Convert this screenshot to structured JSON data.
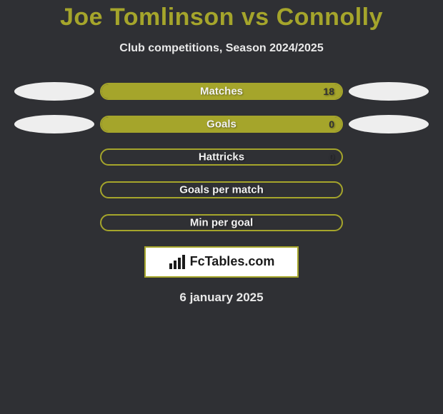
{
  "colors": {
    "background": "#2f3034",
    "title": "#a5a52b",
    "text_light": "#e9e9e9",
    "text_dark": "#1a1a1a",
    "track_border": "#a5a52b",
    "track_fill": "#a5a52b",
    "ellipse": "#eeeeee",
    "brand_border": "#a5a52b",
    "brand_bg": "#ffffff",
    "label_text": "#f2f2f2",
    "value_text": "#2f3034"
  },
  "title": "Joe Tomlinson vs Connolly",
  "subtitle": "Club competitions, Season 2024/2025",
  "rows": [
    {
      "label": "Matches",
      "right_value": "18",
      "right_fill_pct": 100,
      "left_ellipse": true,
      "right_ellipse": true
    },
    {
      "label": "Goals",
      "right_value": "0",
      "right_fill_pct": 100,
      "left_ellipse": true,
      "right_ellipse": true
    },
    {
      "label": "Hattricks",
      "right_value": "0",
      "right_fill_pct": 0,
      "left_ellipse": false,
      "right_ellipse": false
    },
    {
      "label": "Goals per match",
      "right_value": "",
      "right_fill_pct": 0,
      "left_ellipse": false,
      "right_ellipse": false
    },
    {
      "label": "Min per goal",
      "right_value": "",
      "right_fill_pct": 0,
      "left_ellipse": false,
      "right_ellipse": false
    }
  ],
  "brand": "FcTables.com",
  "date": "6 january 2025",
  "label_fontsize": 15,
  "title_fontsize": 34,
  "subtitle_fontsize": 16
}
